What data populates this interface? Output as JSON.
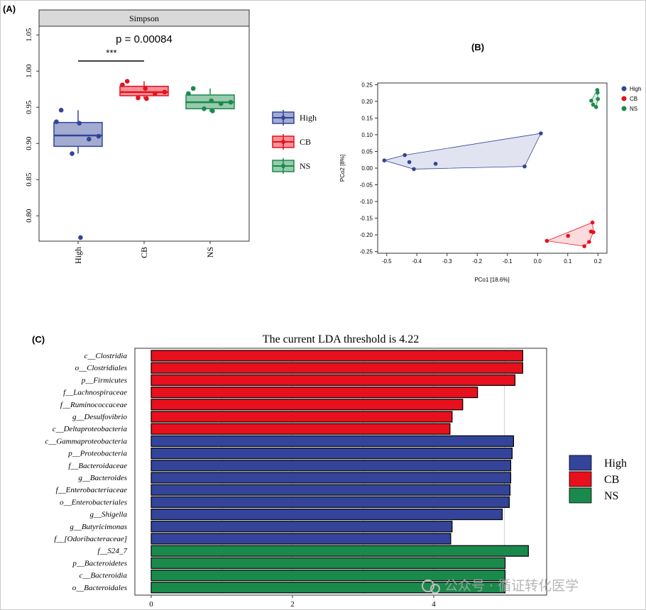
{
  "panels": {
    "a_label": "(A)",
    "b_label": "(B)",
    "c_label": "(C)"
  },
  "colors": {
    "High": "#33449a",
    "CB": "#e8101c",
    "NS": "#1a8a4c"
  },
  "watermark": "公众号 · 循证转化医学",
  "chart_data": [
    {
      "type": "box",
      "facet_title": "Simpson",
      "annotation": "p = 0.00084",
      "significance": "***",
      "significance_between": [
        "High",
        "CB"
      ],
      "categories": [
        "High",
        "CB",
        "NS"
      ],
      "ylim": [
        0.765,
        1.062
      ],
      "yticks": [
        "0.80",
        "0.85",
        "0.90",
        "0.95",
        "1.00",
        "1.05"
      ],
      "ytick_values": [
        0.8,
        0.85,
        0.9,
        0.95,
        1.0,
        1.05
      ],
      "series": [
        {
          "name": "High",
          "box": {
            "q1": 0.896,
            "median": 0.911,
            "q3": 0.929,
            "whisker_low": 0.886,
            "whisker_high": 0.946
          },
          "points": [
            0.946,
            0.93,
            0.928,
            0.91,
            0.906,
            0.886,
            0.77
          ]
        },
        {
          "name": "CB",
          "box": {
            "q1": 0.966,
            "median": 0.971,
            "q3": 0.979,
            "whisker_low": 0.962,
            "whisker_high": 0.986
          },
          "points": [
            0.986,
            0.981,
            0.976,
            0.971,
            0.969,
            0.963,
            0.962
          ]
        },
        {
          "name": "NS",
          "box": {
            "q1": 0.948,
            "median": 0.957,
            "q3": 0.967,
            "whisker_low": 0.944,
            "whisker_high": 0.976
          },
          "points": [
            0.976,
            0.969,
            0.959,
            0.957,
            0.955,
            0.948,
            0.945
          ]
        }
      ],
      "legend": [
        {
          "label": "High"
        },
        {
          "label": "CB"
        },
        {
          "label": "NS"
        }
      ],
      "legend_position": "right"
    },
    {
      "type": "scatter",
      "xlabel": "PCo1 [18.6%]",
      "ylabel": "PCo2 [8%]",
      "xlim": [
        -0.53,
        0.23
      ],
      "ylim": [
        -0.255,
        0.255
      ],
      "xticks": [
        "-0.5",
        "-0.4",
        "-0.3",
        "-0.2",
        "-0.1",
        "0.0",
        "0.1",
        "0.2"
      ],
      "xtick_values": [
        -0.5,
        -0.4,
        -0.3,
        -0.2,
        -0.1,
        0.0,
        0.1,
        0.2
      ],
      "yticks": [
        "0.25",
        "0.20",
        "0.15",
        "0.10",
        "0.05",
        "0.00",
        "-0.05",
        "-0.10",
        "-0.15",
        "-0.20",
        "-0.25"
      ],
      "ytick_values": [
        0.25,
        0.2,
        0.15,
        0.1,
        0.05,
        0.0,
        -0.05,
        -0.1,
        -0.15,
        -0.2,
        -0.25
      ],
      "series": [
        {
          "name": "High",
          "points": [
            [
              -0.508,
              0.023
            ],
            [
              -0.44,
              0.039
            ],
            [
              -0.425,
              0.018
            ],
            [
              -0.41,
              -0.003
            ],
            [
              -0.338,
              0.013
            ],
            [
              -0.043,
              0.005
            ],
            [
              0.011,
              0.104
            ]
          ],
          "hull": [
            [
              -0.508,
              0.023
            ],
            [
              -0.44,
              0.039
            ],
            [
              0.011,
              0.104
            ],
            [
              -0.043,
              0.005
            ],
            [
              -0.41,
              -0.003
            ]
          ]
        },
        {
          "name": "CB",
          "points": [
            [
              0.031,
              -0.218
            ],
            [
              0.101,
              -0.203
            ],
            [
              0.155,
              -0.234
            ],
            [
              0.171,
              -0.221
            ],
            [
              0.177,
              -0.19
            ],
            [
              0.185,
              -0.192
            ],
            [
              0.182,
              -0.163
            ]
          ],
          "hull": [
            [
              0.031,
              -0.218
            ],
            [
              0.182,
              -0.163
            ],
            [
              0.185,
              -0.192
            ],
            [
              0.171,
              -0.221
            ],
            [
              0.155,
              -0.234
            ]
          ]
        },
        {
          "name": "NS",
          "points": [
            [
              0.198,
              0.234
            ],
            [
              0.199,
              0.226
            ],
            [
              0.2,
              0.207
            ],
            [
              0.178,
              0.202
            ],
            [
              0.184,
              0.19
            ],
            [
              0.194,
              0.183
            ]
          ],
          "hull": [
            [
              0.198,
              0.234
            ],
            [
              0.199,
              0.226
            ],
            [
              0.2,
              0.207
            ],
            [
              0.194,
              0.183
            ],
            [
              0.178,
              0.202
            ]
          ]
        }
      ],
      "legend": [
        {
          "label": "High"
        },
        {
          "label": "CB"
        },
        {
          "label": "NS"
        }
      ],
      "legend_position": "top-right"
    },
    {
      "type": "bar",
      "orientation": "horizontal",
      "title": "The current LDA threshold is 4.22",
      "xlim": [
        0,
        5.6
      ],
      "xticks": [
        "0",
        "2",
        "4"
      ],
      "xtick_values": [
        0,
        2,
        4
      ],
      "gridlines": [
        1,
        2,
        3,
        4,
        5
      ],
      "categories": [
        "c__Clostridia",
        "o__Clostridiales",
        "p__Firmicutes",
        "f__Lachnospiraceae",
        "f__Ruminococcaceae",
        "g__Desulfovibrio",
        "c__Deltaproteobacteria",
        "c__Gammaproteobacteria",
        "p__Proteobacteria",
        "f__Bacteroidaceae",
        "g__Bacteroides",
        "f__Enterobacteriaceae",
        "o__Enterobacteriales",
        "g__Shigella",
        "g__Butyricimonas",
        "f__[Odoribacteraceae]",
        "f__S24_7",
        "p__Bacteroidetes",
        "c__Bacteroidia",
        "o__Bacteroidales"
      ],
      "values": [
        5.26,
        5.26,
        5.15,
        4.62,
        4.41,
        4.26,
        4.23,
        5.13,
        5.11,
        5.09,
        5.09,
        5.08,
        5.07,
        4.97,
        4.26,
        4.24,
        5.34,
        5.01,
        5.01,
        5.01
      ],
      "groups": [
        "CB",
        "CB",
        "CB",
        "CB",
        "CB",
        "CB",
        "CB",
        "High",
        "High",
        "High",
        "High",
        "High",
        "High",
        "High",
        "High",
        "High",
        "NS",
        "NS",
        "NS",
        "NS"
      ],
      "legend": [
        {
          "label": "High"
        },
        {
          "label": "CB"
        },
        {
          "label": "NS"
        }
      ],
      "legend_position": "right"
    }
  ]
}
